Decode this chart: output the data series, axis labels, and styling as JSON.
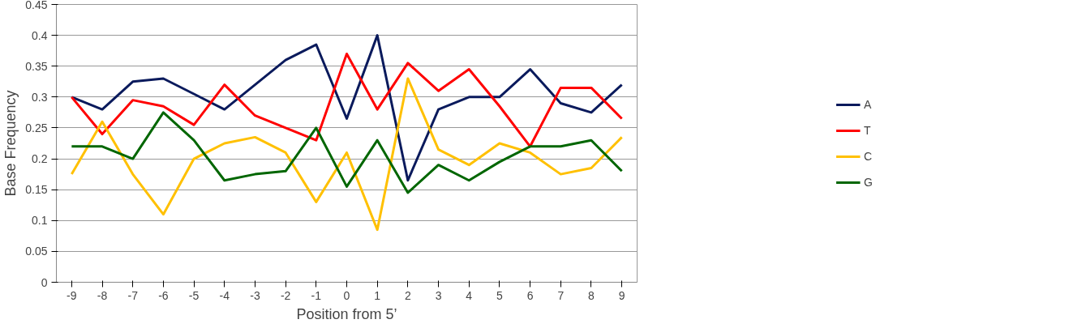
{
  "chart_data": {
    "type": "line",
    "xlabel": "Position from 5’",
    "ylabel": "Base Frequency",
    "categories": [
      "-9",
      "-8",
      "-7",
      "-6",
      "-5",
      "-4",
      "-3",
      "-2",
      "-1",
      "0",
      "1",
      "2",
      "3",
      "4",
      "5",
      "6",
      "7",
      "8",
      "9"
    ],
    "series": [
      {
        "name": "A",
        "color": "#0a1a5c",
        "values": [
          0.3,
          0.28,
          0.325,
          0.33,
          0.305,
          0.28,
          0.32,
          0.36,
          0.385,
          0.265,
          0.4,
          0.165,
          0.28,
          0.3,
          0.3,
          0.345,
          0.29,
          0.275,
          0.32
        ]
      },
      {
        "name": "T",
        "color": "#ff0000",
        "values": [
          0.3,
          0.24,
          0.295,
          0.285,
          0.255,
          0.32,
          0.27,
          0.25,
          0.23,
          0.37,
          0.28,
          0.355,
          0.31,
          0.345,
          0.285,
          0.22,
          0.315,
          0.315,
          0.265
        ]
      },
      {
        "name": "C",
        "color": "#ffc000",
        "values": [
          0.175,
          0.26,
          0.175,
          0.11,
          0.2,
          0.225,
          0.235,
          0.21,
          0.13,
          0.21,
          0.085,
          0.33,
          0.215,
          0.19,
          0.225,
          0.21,
          0.175,
          0.185,
          0.235
        ]
      },
      {
        "name": "G",
        "color": "#006600",
        "values": [
          0.22,
          0.22,
          0.2,
          0.275,
          0.23,
          0.165,
          0.175,
          0.18,
          0.25,
          0.155,
          0.23,
          0.145,
          0.19,
          0.165,
          0.195,
          0.22,
          0.22,
          0.23,
          0.18
        ]
      }
    ],
    "ylim": [
      0,
      0.45
    ],
    "yticks": [
      0,
      0.05,
      0.1,
      0.15,
      0.2,
      0.25,
      0.3,
      0.35,
      0.4,
      0.45
    ],
    "grid": "y",
    "legend": "right",
    "marker": "none",
    "line_style": "solid"
  }
}
